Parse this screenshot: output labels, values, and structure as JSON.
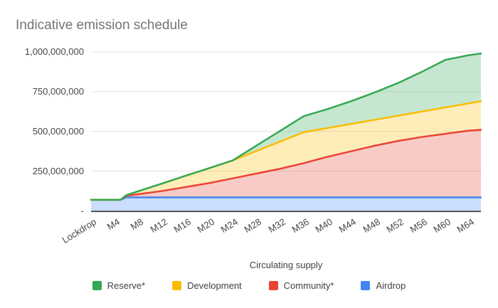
{
  "title": "Indicative emission schedule",
  "chart_data": {
    "type": "area",
    "title": "Indicative emission schedule",
    "x_axis_title": "Circulating supply",
    "xlabel": "Circulating supply",
    "ylabel": "",
    "ylim": [
      0,
      1000000000
    ],
    "grid": true,
    "legend_position": "bottom",
    "values_are": "cumulative circulating supply per line (areas are bands between adjacent lines)",
    "x_tick_labels": [
      "Lockdrop",
      "M4",
      "M8",
      "M12",
      "M16",
      "M20",
      "M24",
      "M28",
      "M32",
      "M36",
      "M40",
      "M44",
      "M48",
      "M52",
      "M56",
      "M60",
      "M64"
    ],
    "x_tick_months": [
      0,
      4,
      8,
      12,
      16,
      20,
      24,
      28,
      32,
      36,
      40,
      44,
      48,
      52,
      56,
      60,
      64
    ],
    "x_max_month": 66,
    "months": [
      0,
      4,
      5,
      6,
      8,
      12,
      16,
      20,
      24,
      28,
      32,
      36,
      40,
      44,
      48,
      52,
      56,
      60,
      64,
      66
    ],
    "series": [
      {
        "name": "Reserve*",
        "color": "#34a853",
        "values": [
          70000000,
          70000000,
          70000000,
          100000000,
          124000000,
          172000000,
          221000000,
          269000000,
          318000000,
          411000000,
          503000000,
          596000000,
          640000000,
          690000000,
          745000000,
          805000000,
          875000000,
          950000000,
          980000000,
          990000000
        ]
      },
      {
        "name": "Development",
        "color": "#fbbc04",
        "values": [
          70000000,
          70000000,
          70000000,
          100000000,
          124000000,
          172000000,
          221000000,
          269000000,
          318000000,
          377000000,
          436000000,
          495000000,
          521000000,
          547000000,
          573000000,
          599000000,
          625000000,
          651000000,
          677000000,
          690000000
        ]
      },
      {
        "name": "Community*",
        "color": "#ea4335",
        "values": [
          70000000,
          70000000,
          70000000,
          95000000,
          105000000,
          125000000,
          150000000,
          175000000,
          205000000,
          235000000,
          265000000,
          300000000,
          340000000,
          375000000,
          410000000,
          440000000,
          465000000,
          485000000,
          505000000,
          510000000
        ]
      },
      {
        "name": "Airdrop",
        "color": "#4285f4",
        "values": [
          70000000,
          70000000,
          70000000,
          85000000,
          85000000,
          85000000,
          85000000,
          85000000,
          85000000,
          85000000,
          85000000,
          85000000,
          85000000,
          85000000,
          85000000,
          85000000,
          85000000,
          85000000,
          85000000,
          85000000
        ]
      }
    ],
    "y_ticks": [
      {
        "label": "1,000,000,000",
        "value": 1000000000
      },
      {
        "label": "750,000,000",
        "value": 750000000
      },
      {
        "label": "500,000,000",
        "value": 500000000
      },
      {
        "label": "250,000,000",
        "value": 250000000
      },
      {
        "label": "-",
        "value": 0
      }
    ]
  },
  "colors": {
    "background": "#ffffff",
    "title_text": "#757575",
    "axis_text": "#464646",
    "gridline": "#e2e2e2",
    "axis_line": "#424242",
    "fill_opacity": 0.28
  }
}
